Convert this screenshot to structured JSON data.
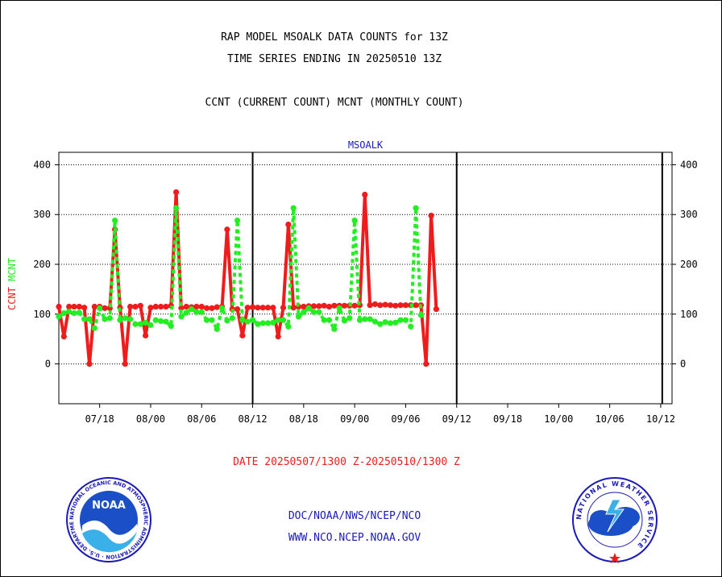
{
  "header": {
    "line1": "RAP MODEL MSOALK DATA COUNTS for 13Z",
    "line2": "TIME SERIES ENDING IN 20250510 13Z",
    "line3": "CCNT (CURRENT COUNT) MCNT (MONTHLY COUNT)"
  },
  "footer": {
    "date_range": "DATE 20250507/1300 Z-20250510/1300 Z",
    "org": "DOC/NOAA/NWS/NCEP/NCO",
    "url": "WWW.NCO.NCEP.NOAA.GOV"
  },
  "logos": {
    "noaa_text": "NOAA",
    "noaa_ring": "NATIONAL OCEANIC AND ATMOSPHERIC ADMINISTRATION · U.S. DEPARTMENT OF COMMERCE",
    "nws_ring": "NATIONAL WEATHER SERVICE"
  },
  "colors": {
    "ccnt": "#ee1c1c",
    "mcnt": "#22ee22",
    "panel_title": "#1a1ab8",
    "axis": "#000000"
  },
  "chart_data": {
    "type": "line",
    "title": "MSOALK",
    "ylabel_series": [
      "CCNT",
      "MCNT"
    ],
    "ylim": [
      -80,
      425
    ],
    "yticks": [
      0,
      100,
      200,
      300,
      400
    ],
    "x_tick_labels": [
      "07/18",
      "08/00",
      "08/06",
      "08/12",
      "08/18",
      "09/00",
      "09/06",
      "09/12",
      "09/18",
      "10/00",
      "10/06",
      "10/12"
    ],
    "x_tick_index": [
      8,
      18,
      28,
      38,
      48,
      58,
      68,
      78,
      88,
      98,
      108,
      118
    ],
    "day_boundaries_index": [
      38,
      78,
      118.3
    ],
    "grid": "horizontal dotted",
    "series": [
      {
        "name": "CCNT",
        "color": "#ee1c1c",
        "values": [
          115,
          55,
          115,
          115,
          115,
          113,
          0,
          115,
          115,
          112,
          112,
          270,
          113,
          0,
          115,
          115,
          117,
          57,
          113,
          115,
          115,
          115,
          117,
          345,
          112,
          115,
          114,
          115,
          115,
          112,
          112,
          114,
          115,
          270,
          110,
          110,
          57,
          113,
          114,
          113,
          113,
          113,
          113,
          55,
          113,
          280,
          113,
          115,
          115,
          116,
          116,
          116,
          117,
          115,
          117,
          117,
          117,
          117,
          117,
          118,
          340,
          118,
          120,
          118,
          119,
          118,
          117,
          118,
          118,
          118,
          118,
          118,
          0,
          298,
          110
        ]
      },
      {
        "name": "MCNT",
        "color": "#22ee22",
        "values": [
          95,
          102,
          105,
          102,
          103,
          90,
          90,
          72,
          112,
          90,
          92,
          288,
          88,
          92,
          90,
          80,
          80,
          83,
          78,
          88,
          86,
          85,
          76,
          313,
          95,
          103,
          110,
          104,
          104,
          88,
          88,
          70,
          112,
          87,
          92,
          288,
          88,
          85,
          88,
          80,
          82,
          82,
          83,
          88,
          88,
          75,
          313,
          95,
          104,
          112,
          104,
          104,
          88,
          88,
          70,
          112,
          87,
          92,
          288,
          88,
          90,
          90,
          85,
          80,
          84,
          82,
          83,
          88,
          88,
          75,
          313,
          98
        ]
      }
    ]
  }
}
